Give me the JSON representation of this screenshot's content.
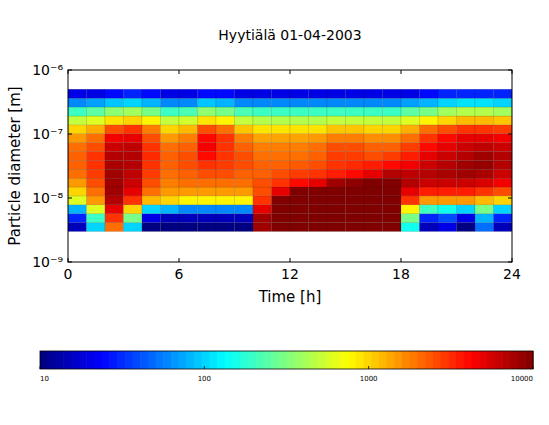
{
  "chart_data": {
    "type": "heatmap",
    "title": "Hyytiälä 01-04-2003",
    "xlabel": "Time [h]",
    "ylabel": "Particle diameter [m]",
    "log": "y",
    "grid": false,
    "xlim": [
      0,
      24
    ],
    "xticks": [
      0,
      6,
      12,
      18,
      24
    ],
    "ylim": [
      1e-09,
      1e-06
    ],
    "yticks": [
      {
        "value": 1e-09,
        "label": "10⁻⁹"
      },
      {
        "value": 1e-08,
        "label": "10⁻⁸"
      },
      {
        "value": 1e-07,
        "label": "10⁻⁷"
      },
      {
        "value": 1e-06,
        "label": "10⁻⁶"
      }
    ],
    "x_bins": [
      0,
      1,
      2,
      3,
      4,
      5,
      6,
      7,
      8,
      9,
      10,
      11,
      12,
      13,
      14,
      15,
      16,
      17,
      18,
      19,
      20,
      21,
      22,
      23,
      24
    ],
    "y_bins": [
      3e-09,
      4.13e-09,
      5.69e-09,
      7.83e-09,
      1.079e-08,
      1.484e-08,
      2.04e-08,
      2.81e-08,
      3.87e-08,
      5.33e-08,
      7.34e-08,
      1.011e-07,
      1.39e-07,
      1.91e-07,
      2.64e-07,
      3.63e-07,
      5e-07
    ],
    "cells": [
      [
        15,
        100,
        2000,
        100,
        10,
        10,
        10,
        10,
        10,
        10,
        8000,
        10000,
        10000,
        10000,
        10000,
        10000,
        10000,
        10000,
        150,
        15,
        20,
        10,
        50,
        15
      ],
      [
        30,
        200,
        3000,
        300,
        20,
        15,
        15,
        15,
        15,
        15,
        8000,
        10000,
        10000,
        10000,
        10000,
        10000,
        10000,
        10000,
        300,
        30,
        40,
        20,
        80,
        30
      ],
      [
        80,
        600,
        5000,
        1000,
        100,
        80,
        60,
        60,
        60,
        60,
        5000,
        10000,
        10000,
        10000,
        10000,
        10000,
        10000,
        10000,
        800,
        200,
        150,
        100,
        300,
        100
      ],
      [
        600,
        1500,
        7000,
        3000,
        1200,
        1000,
        800,
        800,
        800,
        800,
        3000,
        10000,
        10000,
        10000,
        10000,
        10000,
        10000,
        10000,
        3000,
        1500,
        1500,
        1500,
        1200,
        1000
      ],
      [
        1000,
        2000,
        8000,
        5000,
        2000,
        1500,
        1500,
        1500,
        1500,
        1500,
        2500,
        5000,
        10000,
        10000,
        10000,
        10000,
        10000,
        10000,
        5000,
        3500,
        3500,
        3500,
        3000,
        2500
      ],
      [
        1500,
        2500,
        8000,
        6000,
        2500,
        1800,
        2000,
        2000,
        2000,
        2000,
        2500,
        3000,
        4000,
        5000,
        8000,
        9000,
        10000,
        10000,
        7000,
        6000,
        6000,
        6000,
        5500,
        4500
      ],
      [
        2000,
        2800,
        8000,
        6500,
        2800,
        2000,
        2200,
        2500,
        2500,
        2200,
        2200,
        2500,
        2800,
        3000,
        3500,
        4000,
        5000,
        7000,
        6500,
        7000,
        7500,
        8000,
        7500,
        6000
      ],
      [
        2200,
        3000,
        7500,
        7000,
        3000,
        2200,
        2500,
        3000,
        2800,
        2500,
        2200,
        2200,
        2300,
        2500,
        3000,
        3200,
        3500,
        4000,
        4500,
        6000,
        7000,
        8000,
        8500,
        7000
      ],
      [
        2200,
        3000,
        7000,
        7000,
        3200,
        2200,
        2500,
        4000,
        3000,
        2500,
        2000,
        2000,
        2000,
        2200,
        2800,
        2800,
        2500,
        2800,
        3500,
        5000,
        6000,
        7000,
        8000,
        7000
      ],
      [
        2000,
        2500,
        6000,
        6500,
        3000,
        2000,
        2200,
        4500,
        3000,
        2200,
        1800,
        1800,
        1800,
        2000,
        2500,
        2500,
        2200,
        2200,
        2800,
        4000,
        5000,
        6000,
        6500,
        6000
      ],
      [
        1500,
        2000,
        4500,
        5000,
        2500,
        1500,
        1800,
        4000,
        3000,
        1800,
        1400,
        1400,
        1400,
        1500,
        1800,
        1800,
        1600,
        1600,
        2000,
        3000,
        4000,
        5000,
        5000,
        4500
      ],
      [
        1000,
        1300,
        2500,
        3000,
        1800,
        1000,
        1200,
        2500,
        2000,
        1100,
        900,
        900,
        900,
        900,
        1100,
        1100,
        1000,
        1000,
        1300,
        2000,
        2500,
        3000,
        3000,
        2800
      ],
      [
        500,
        600,
        900,
        1000,
        800,
        500,
        550,
        900,
        800,
        500,
        450,
        450,
        450,
        450,
        500,
        500,
        500,
        500,
        600,
        800,
        1000,
        1200,
        1200,
        1100
      ],
      [
        200,
        250,
        350,
        400,
        300,
        200,
        220,
        350,
        300,
        220,
        200,
        200,
        200,
        200,
        200,
        200,
        200,
        200,
        250,
        300,
        400,
        450,
        450,
        400
      ],
      [
        60,
        70,
        90,
        100,
        80,
        60,
        60,
        90,
        80,
        60,
        60,
        60,
        60,
        60,
        60,
        60,
        60,
        60,
        70,
        80,
        100,
        110,
        110,
        100
      ],
      [
        20,
        20,
        25,
        30,
        25,
        20,
        20,
        25,
        25,
        20,
        20,
        20,
        20,
        20,
        20,
        20,
        20,
        20,
        20,
        25,
        30,
        30,
        30,
        30
      ]
    ],
    "colorbar_lim": [
      10,
      10000
    ],
    "colorbar_ticks": [
      10,
      100,
      1000,
      10000
    ]
  }
}
